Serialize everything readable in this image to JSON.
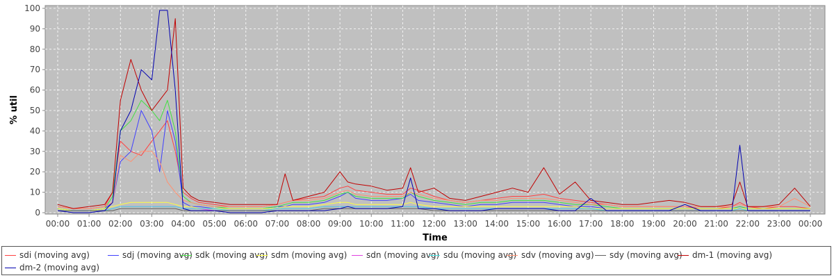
{
  "chart_data": {
    "type": "line",
    "xlabel": "Time",
    "ylabel": "% util",
    "ylim": [
      0,
      100
    ],
    "yticks": [
      0,
      10,
      20,
      30,
      40,
      50,
      60,
      70,
      80,
      90,
      100
    ],
    "xticks": [
      "00:00",
      "01:00",
      "02:00",
      "03:00",
      "04:00",
      "05:00",
      "06:00",
      "07:00",
      "08:00",
      "09:00",
      "10:00",
      "11:00",
      "12:00",
      "13:00",
      "14:00",
      "15:00",
      "16:00",
      "17:00",
      "18:00",
      "19:00",
      "20:00",
      "21:00",
      "22:00",
      "23:00",
      "00:00"
    ],
    "grid": true,
    "legend_position": "bottom",
    "x": [
      "00:00",
      "00:30",
      "01:00",
      "01:30",
      "01:45",
      "02:00",
      "02:20",
      "02:40",
      "03:00",
      "03:15",
      "03:30",
      "03:45",
      "04:00",
      "04:15",
      "04:30",
      "05:00",
      "05:30",
      "06:00",
      "06:30",
      "07:00",
      "07:15",
      "07:30",
      "08:00",
      "08:30",
      "09:00",
      "09:15",
      "09:30",
      "10:00",
      "10:30",
      "11:00",
      "11:15",
      "11:30",
      "12:00",
      "12:30",
      "13:00",
      "13:30",
      "14:00",
      "14:30",
      "15:00",
      "15:30",
      "16:00",
      "16:30",
      "17:00",
      "17:30",
      "18:00",
      "18:30",
      "19:00",
      "19:30",
      "20:00",
      "20:30",
      "21:00",
      "21:30",
      "21:45",
      "22:00",
      "22:30",
      "23:00",
      "23:30",
      "00:00"
    ],
    "series": [
      {
        "name": "sdi (moving avg)",
        "color": "#ff4040",
        "values": [
          3,
          2,
          2,
          3,
          10,
          35,
          30,
          28,
          35,
          40,
          45,
          30,
          10,
          7,
          5,
          4,
          3,
          3,
          3,
          4,
          5,
          6,
          7,
          8,
          12,
          13,
          11,
          10,
          9,
          9,
          12,
          11,
          8,
          6,
          5,
          6,
          7,
          8,
          8,
          9,
          7,
          6,
          5,
          4,
          3,
          3,
          3,
          3,
          3,
          2,
          2,
          3,
          5,
          3,
          2,
          3,
          3,
          2
        ]
      },
      {
        "name": "sdj (moving avg)",
        "color": "#4040ff",
        "values": [
          2,
          1,
          1,
          2,
          5,
          25,
          30,
          50,
          40,
          20,
          50,
          35,
          5,
          3,
          3,
          2,
          2,
          2,
          2,
          3,
          3,
          4,
          4,
          5,
          8,
          10,
          7,
          6,
          6,
          7,
          9,
          6,
          5,
          4,
          3,
          4,
          4,
          5,
          5,
          5,
          4,
          3,
          3,
          2,
          2,
          2,
          2,
          2,
          2,
          2,
          2,
          2,
          3,
          2,
          2,
          2,
          2,
          2
        ]
      },
      {
        "name": "sdk (moving avg)",
        "color": "#40e040",
        "values": [
          2,
          1,
          1,
          2,
          8,
          40,
          45,
          55,
          50,
          45,
          55,
          40,
          8,
          5,
          4,
          3,
          2,
          2,
          2,
          3,
          4,
          5,
          5,
          6,
          9,
          10,
          8,
          7,
          7,
          7,
          10,
          8,
          6,
          5,
          4,
          5,
          5,
          6,
          6,
          6,
          5,
          4,
          4,
          3,
          2,
          2,
          2,
          2,
          2,
          2,
          2,
          2,
          3,
          2,
          2,
          2,
          2,
          2
        ]
      },
      {
        "name": "sdm (moving avg)",
        "color": "#ffff40",
        "values": [
          2,
          1,
          1,
          2,
          3,
          4,
          5,
          5,
          5,
          5,
          5,
          4,
          3,
          3,
          2,
          2,
          2,
          2,
          2,
          2,
          3,
          3,
          3,
          4,
          5,
          5,
          4,
          4,
          4,
          4,
          5,
          4,
          3,
          3,
          3,
          3,
          3,
          3,
          3,
          3,
          3,
          3,
          2,
          2,
          2,
          2,
          2,
          2,
          2,
          2,
          2,
          2,
          2,
          2,
          2,
          2,
          2,
          2
        ]
      },
      {
        "name": "sdn (moving avg)",
        "color": "#e040e0",
        "values": [
          1,
          1,
          1,
          1,
          2,
          3,
          3,
          3,
          3,
          3,
          3,
          3,
          2,
          2,
          2,
          1,
          1,
          1,
          1,
          2,
          2,
          2,
          2,
          3,
          3,
          3,
          3,
          3,
          3,
          3,
          3,
          3,
          2,
          2,
          2,
          2,
          2,
          2,
          2,
          2,
          2,
          2,
          2,
          1,
          1,
          1,
          1,
          1,
          1,
          1,
          1,
          1,
          2,
          1,
          1,
          1,
          1,
          1
        ]
      },
      {
        "name": "sdu (moving avg)",
        "color": "#40e0e0",
        "values": [
          1,
          1,
          1,
          1,
          2,
          3,
          3,
          3,
          3,
          3,
          3,
          3,
          2,
          2,
          2,
          2,
          1,
          1,
          1,
          2,
          2,
          2,
          2,
          3,
          3,
          3,
          3,
          3,
          3,
          3,
          3,
          3,
          2,
          2,
          2,
          2,
          2,
          2,
          2,
          2,
          2,
          2,
          2,
          1,
          1,
          1,
          1,
          1,
          1,
          1,
          1,
          1,
          2,
          1,
          1,
          1,
          1,
          1
        ]
      },
      {
        "name": "sdv (moving avg)",
        "color": "#ff9070",
        "values": [
          3,
          2,
          2,
          3,
          5,
          28,
          25,
          30,
          30,
          25,
          15,
          10,
          6,
          5,
          4,
          3,
          3,
          3,
          3,
          4,
          5,
          6,
          6,
          7,
          10,
          11,
          9,
          8,
          8,
          8,
          10,
          9,
          7,
          6,
          5,
          6,
          6,
          7,
          7,
          7,
          6,
          5,
          4,
          4,
          3,
          3,
          3,
          3,
          3,
          3,
          3,
          3,
          4,
          3,
          3,
          3,
          7,
          3
        ]
      },
      {
        "name": "sdy (moving avg)",
        "color": "#606060",
        "values": [
          1,
          1,
          1,
          1,
          1,
          2,
          2,
          2,
          2,
          2,
          2,
          2,
          1,
          1,
          1,
          1,
          1,
          1,
          1,
          1,
          1,
          1,
          1,
          2,
          2,
          2,
          2,
          2,
          2,
          2,
          2,
          2,
          1,
          1,
          1,
          1,
          1,
          1,
          1,
          1,
          1,
          1,
          1,
          1,
          1,
          1,
          1,
          1,
          1,
          1,
          1,
          1,
          1,
          1,
          1,
          1,
          1,
          1
        ]
      },
      {
        "name": "dm-1 (moving avg)",
        "color": "#c00000",
        "values": [
          4,
          2,
          3,
          4,
          10,
          55,
          75,
          60,
          50,
          55,
          60,
          95,
          12,
          8,
          6,
          5,
          4,
          4,
          4,
          4,
          19,
          6,
          8,
          10,
          20,
          15,
          14,
          13,
          11,
          12,
          22,
          10,
          12,
          7,
          6,
          8,
          10,
          12,
          10,
          22,
          9,
          15,
          6,
          5,
          4,
          4,
          5,
          6,
          5,
          3,
          3,
          4,
          15,
          3,
          3,
          4,
          12,
          3
        ]
      },
      {
        "name": "dm-2 (moving avg)",
        "color": "#0000b0",
        "values": [
          1,
          0,
          0,
          1,
          5,
          40,
          50,
          70,
          65,
          99,
          99,
          60,
          2,
          1,
          1,
          1,
          0,
          0,
          0,
          1,
          1,
          1,
          1,
          1,
          2,
          3,
          2,
          2,
          2,
          3,
          17,
          2,
          2,
          1,
          1,
          1,
          2,
          2,
          2,
          2,
          1,
          1,
          7,
          1,
          1,
          1,
          1,
          1,
          4,
          1,
          1,
          1,
          33,
          1,
          1,
          1,
          1,
          1
        ]
      }
    ]
  }
}
